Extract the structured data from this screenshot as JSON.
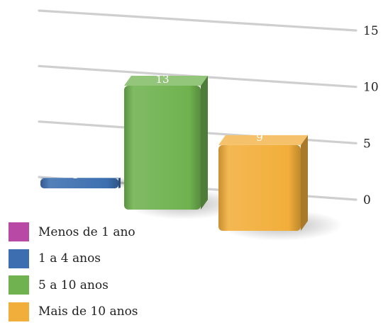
{
  "chart_data": {
    "type": "bar",
    "categories": [
      "Menos de 1 ano",
      "1 a 4 anos",
      "5 a 10 anos",
      "Mais de 10 anos"
    ],
    "values": [
      0,
      1,
      13,
      9
    ],
    "ylim": [
      0,
      15
    ],
    "yticks": [
      "0",
      "5",
      "10",
      "15"
    ],
    "grid": true,
    "legend_position": "bottom-left",
    "colors": [
      "#b84aa6",
      "#3d6fb0",
      "#6fb24f",
      "#f2ae3a"
    ],
    "data_labels": [
      "",
      "1",
      "13",
      "9"
    ]
  }
}
